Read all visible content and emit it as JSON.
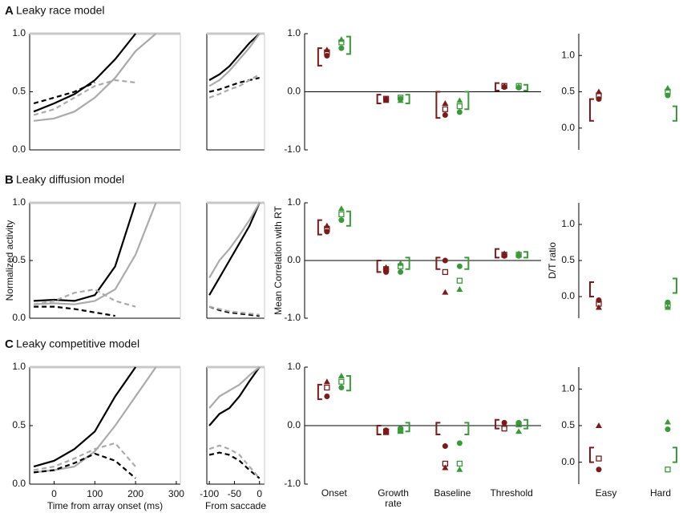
{
  "chart_data": [
    {
      "type": "line",
      "panel_label": "A",
      "title": "Leaky race model",
      "x": [
        -50,
        0,
        50,
        100,
        150,
        200,
        250,
        300
      ],
      "xlim": [
        -60,
        310
      ],
      "ylim": [
        0,
        1
      ],
      "yticks": [
        {
          "value": 0,
          "label": "0.0"
        },
        {
          "value": 0.5,
          "label": "0.5"
        },
        {
          "value": 1,
          "label": "1.0"
        }
      ],
      "series": [
        {
          "color": "#000000",
          "values": [
            0.33,
            0.4,
            0.48,
            0.6,
            0.78,
            1.0,
            null,
            null
          ]
        },
        {
          "color": "#aaaaaa",
          "values": [
            0.25,
            0.27,
            0.33,
            0.45,
            0.62,
            0.85,
            1.0,
            null
          ]
        },
        {
          "color": "#000000",
          "dash": true,
          "values": [
            0.4,
            0.45,
            0.5,
            0.58,
            null,
            null,
            null,
            null
          ]
        },
        {
          "color": "#aaaaaa",
          "dash": true,
          "values": [
            0.3,
            0.35,
            0.45,
            0.55,
            0.6,
            0.58,
            null,
            null
          ]
        }
      ]
    },
    {
      "type": "line",
      "x": [
        -100,
        -80,
        -60,
        -40,
        -20,
        0
      ],
      "xlim": [
        -105,
        10
      ],
      "ylim": [
        0,
        1
      ],
      "series": [
        {
          "color": "#000000",
          "values": [
            0.6,
            0.65,
            0.72,
            0.82,
            0.92,
            1.0
          ]
        },
        {
          "color": "#aaaaaa",
          "values": [
            0.55,
            0.6,
            0.68,
            0.78,
            0.88,
            1.0
          ]
        },
        {
          "color": "#000000",
          "dash": true,
          "values": [
            0.5,
            0.52,
            0.55,
            0.58,
            0.6,
            0.62
          ]
        },
        {
          "color": "#aaaaaa",
          "dash": true,
          "values": [
            0.45,
            0.48,
            0.52,
            0.55,
            0.6,
            0.65
          ]
        }
      ]
    },
    {
      "type": "scatter",
      "categories": [
        null,
        null,
        null,
        null
      ],
      "ylim": [
        -1,
        1
      ],
      "zero_line": true,
      "yticks": [
        {
          "value": -1,
          "label": "-1.0"
        },
        {
          "value": 0,
          "label": "0.0"
        },
        {
          "value": 1,
          "label": "1.0"
        }
      ],
      "series": [
        {
          "color": "#7a1a1a",
          "marker": "circle",
          "values": [
            0.62,
            -0.13,
            -0.4,
            0.08
          ]
        },
        {
          "color": "#7a1a1a",
          "marker": "square",
          "values": [
            0.68,
            -0.12,
            -0.3,
            0.1
          ]
        },
        {
          "color": "#7a1a1a",
          "marker": "triangle",
          "values": [
            0.72,
            -0.15,
            -0.2,
            0.1
          ]
        },
        {
          "color": "#3a9a3a",
          "marker": "circle",
          "values": [
            0.75,
            -0.12,
            -0.35,
            0.07
          ]
        },
        {
          "color": "#3a9a3a",
          "marker": "square",
          "values": [
            0.85,
            -0.1,
            -0.25,
            0.1
          ]
        },
        {
          "color": "#3a9a3a",
          "marker": "triangle",
          "values": [
            0.9,
            -0.15,
            -0.15,
            0.09
          ]
        }
      ],
      "intervals": [
        {
          "color": "#7a1a1a",
          "low": [
            0.45,
            -0.2,
            -0.45,
            0.02
          ],
          "high": [
            0.75,
            -0.05,
            0,
            0.15
          ]
        },
        {
          "color": "#3a9a3a",
          "low": [
            0.65,
            -0.2,
            -0.3,
            0.02
          ],
          "high": [
            0.95,
            -0.05,
            0,
            0.12
          ]
        }
      ]
    },
    {
      "type": "scatter",
      "categories": [
        null,
        null
      ],
      "ylim": [
        -0.3,
        1.3
      ],
      "yticks": [
        {
          "value": 0,
          "label": "0.0"
        },
        0.5,
        {
          "value": 1,
          "label": "1.0"
        }
      ],
      "series": [
        {
          "color": "#7a1a1a",
          "marker": "circle",
          "values": [
            0.4,
            null
          ]
        },
        {
          "color": "#7a1a1a",
          "marker": "square",
          "values": [
            0.45,
            null
          ]
        },
        {
          "color": "#7a1a1a",
          "marker": "triangle",
          "values": [
            0.5,
            null
          ]
        },
        {
          "color": "#3a9a3a",
          "marker": "circle",
          "values": [
            null,
            0.45
          ]
        },
        {
          "color": "#3a9a3a",
          "marker": "square",
          "values": [
            null,
            0.5
          ]
        },
        {
          "color": "#3a9a3a",
          "marker": "triangle",
          "values": [
            null,
            0.55
          ]
        }
      ],
      "intervals": [
        {
          "color": "#7a1a1a",
          "low": [
            0.1,
            null
          ],
          "high": [
            0.4,
            null
          ]
        },
        {
          "color": "#3a9a3a",
          "low": [
            null,
            0.1
          ],
          "high": [
            null,
            0.3
          ]
        }
      ]
    },
    {
      "type": "line",
      "panel_label": "B",
      "title": "Leaky diffusion model",
      "ylabel": "Normalized activity",
      "x": [
        -50,
        0,
        50,
        100,
        150,
        200,
        250,
        300
      ],
      "xlim": [
        -60,
        310
      ],
      "ylim": [
        0,
        1
      ],
      "yticks": [
        {
          "value": 0,
          "label": "0.0"
        },
        {
          "value": 0.5,
          "label": "0.5"
        },
        {
          "value": 1,
          "label": "1.0"
        }
      ],
      "series": [
        {
          "color": "#000000",
          "values": [
            0.15,
            0.16,
            0.15,
            0.2,
            0.45,
            1.0,
            null,
            null
          ]
        },
        {
          "color": "#aaaaaa",
          "values": [
            0.12,
            0.13,
            0.12,
            0.15,
            0.25,
            0.55,
            1.0,
            null
          ]
        },
        {
          "color": "#000000",
          "dash": true,
          "values": [
            0.1,
            0.1,
            0.08,
            0.05,
            0.02,
            null,
            null,
            null
          ]
        },
        {
          "color": "#aaaaaa",
          "dash": true,
          "values": [
            0.12,
            0.15,
            0.22,
            0.25,
            0.15,
            0.1,
            null,
            null
          ]
        }
      ]
    },
    {
      "type": "line",
      "x": [
        -100,
        -80,
        -60,
        -40,
        -20,
        0
      ],
      "xlim": [
        -105,
        10
      ],
      "ylim": [
        0,
        1
      ],
      "series": [
        {
          "color": "#000000",
          "values": [
            0.2,
            0.35,
            0.5,
            0.65,
            0.8,
            1.0
          ]
        },
        {
          "color": "#aaaaaa",
          "values": [
            0.35,
            0.5,
            0.6,
            0.72,
            0.85,
            1.0
          ]
        },
        {
          "color": "#000000",
          "dash": true,
          "values": [
            0.1,
            0.07,
            0.05,
            0.04,
            0.03,
            0.02
          ]
        },
        {
          "color": "#aaaaaa",
          "dash": true,
          "values": [
            0.1,
            0.08,
            0.06,
            0.05,
            0.04,
            0.03
          ]
        }
      ]
    },
    {
      "type": "scatter",
      "categories": [
        null,
        null,
        null,
        null
      ],
      "ylabel": "Mean Correlation with RT",
      "ylim": [
        -1,
        1
      ],
      "zero_line": true,
      "yticks": [
        {
          "value": -1,
          "label": "-1.0"
        },
        {
          "value": 0,
          "label": "0.0"
        },
        {
          "value": 1,
          "label": "1.0"
        }
      ],
      "series": [
        {
          "color": "#7a1a1a",
          "marker": "circle",
          "values": [
            0.5,
            -0.2,
            0,
            0.08
          ]
        },
        {
          "color": "#7a1a1a",
          "marker": "square",
          "values": [
            0.55,
            -0.15,
            -0.2,
            0.1
          ]
        },
        {
          "color": "#7a1a1a",
          "marker": "triangle",
          "values": [
            0.6,
            -0.12,
            -0.55,
            0.12
          ]
        },
        {
          "color": "#3a9a3a",
          "marker": "circle",
          "values": [
            0.7,
            -0.2,
            -0.1,
            0.08
          ]
        },
        {
          "color": "#3a9a3a",
          "marker": "square",
          "values": [
            0.8,
            -0.1,
            -0.35,
            0.1
          ]
        },
        {
          "color": "#3a9a3a",
          "marker": "triangle",
          "values": [
            0.9,
            -0.05,
            -0.5,
            0.12
          ]
        }
      ],
      "intervals": [
        {
          "color": "#7a1a1a",
          "low": [
            0.45,
            -0.2,
            -0.15,
            0.05
          ],
          "high": [
            0.7,
            0,
            0.05,
            0.2
          ]
        },
        {
          "color": "#3a9a3a",
          "low": [
            0.6,
            -0.15,
            -0.15,
            0.05
          ],
          "high": [
            0.85,
            0.05,
            0.05,
            0.15
          ]
        }
      ]
    },
    {
      "type": "scatter",
      "categories": [
        null,
        null
      ],
      "ylabel": "D/T ratio",
      "ylim": [
        -0.3,
        1.3
      ],
      "yticks": [
        {
          "value": 0,
          "label": "0.0"
        },
        0.5,
        {
          "value": 1,
          "label": "1.0"
        }
      ],
      "series": [
        {
          "color": "#7a1a1a",
          "marker": "circle",
          "values": [
            -0.05,
            null
          ]
        },
        {
          "color": "#7a1a1a",
          "marker": "square",
          "values": [
            -0.1,
            null
          ]
        },
        {
          "color": "#7a1a1a",
          "marker": "triangle",
          "values": [
            -0.15,
            null
          ]
        },
        {
          "color": "#3a9a3a",
          "marker": "circle",
          "values": [
            null,
            -0.08
          ]
        },
        {
          "color": "#3a9a3a",
          "marker": "square",
          "values": [
            null,
            -0.12
          ]
        },
        {
          "color": "#3a9a3a",
          "marker": "triangle",
          "values": [
            null,
            -0.15
          ]
        }
      ],
      "intervals": [
        {
          "color": "#7a1a1a",
          "low": [
            0,
            null
          ],
          "high": [
            0.2,
            null
          ]
        },
        {
          "color": "#3a9a3a",
          "low": [
            null,
            0.05
          ],
          "high": [
            null,
            0.25
          ]
        }
      ]
    },
    {
      "type": "line",
      "panel_label": "C",
      "title": "Leaky competitive model",
      "xlabel": "Time from array onset (ms)",
      "x": [
        -50,
        0,
        50,
        100,
        150,
        200,
        250,
        300
      ],
      "xlim": [
        -60,
        310
      ],
      "ylim": [
        0,
        1
      ],
      "xticks": [
        0,
        100,
        200,
        300
      ],
      "yticks": [
        {
          "value": 0,
          "label": "0.0"
        },
        {
          "value": 0.5,
          "label": "0.5"
        },
        {
          "value": 1,
          "label": "1.0"
        }
      ],
      "series": [
        {
          "color": "#000000",
          "values": [
            0.15,
            0.2,
            0.3,
            0.45,
            0.75,
            1.0,
            null,
            null
          ]
        },
        {
          "color": "#aaaaaa",
          "values": [
            0.1,
            0.12,
            0.15,
            0.28,
            0.5,
            0.75,
            1.0,
            null
          ]
        },
        {
          "color": "#000000",
          "dash": true,
          "values": [
            0.1,
            0.12,
            0.18,
            0.26,
            0.2,
            0.05,
            null,
            null
          ]
        },
        {
          "color": "#aaaaaa",
          "dash": true,
          "values": [
            0.12,
            0.15,
            0.22,
            0.3,
            0.35,
            0.15,
            null,
            null
          ]
        }
      ]
    },
    {
      "type": "line",
      "xlabel": "From saccade",
      "x": [
        -100,
        -80,
        -60,
        -40,
        -20,
        0
      ],
      "xlim": [
        -105,
        10
      ],
      "ylim": [
        0,
        1
      ],
      "xticks": [
        -100,
        -50,
        0
      ],
      "series": [
        {
          "color": "#000000",
          "values": [
            0.5,
            0.6,
            0.65,
            0.75,
            0.88,
            1.0
          ]
        },
        {
          "color": "#aaaaaa",
          "values": [
            0.65,
            0.75,
            0.8,
            0.85,
            0.93,
            1.0
          ]
        },
        {
          "color": "#000000",
          "dash": true,
          "values": [
            0.25,
            0.27,
            0.25,
            0.2,
            0.12,
            0.05
          ]
        },
        {
          "color": "#aaaaaa",
          "dash": true,
          "values": [
            0.3,
            0.33,
            0.3,
            0.25,
            0.15,
            0.05
          ]
        }
      ]
    },
    {
      "type": "scatter",
      "categories": [
        "Onset",
        "Growth rate",
        "Baseline",
        "Threshold"
      ],
      "ylim": [
        -1,
        1
      ],
      "zero_line": true,
      "yticks": [
        {
          "value": -1,
          "label": "-1.0"
        },
        {
          "value": 0,
          "label": "0.0"
        },
        {
          "value": 1,
          "label": "1.0"
        }
      ],
      "series": [
        {
          "color": "#7a1a1a",
          "marker": "circle",
          "values": [
            0.5,
            -0.08,
            -0.35,
            0.05
          ]
        },
        {
          "color": "#7a1a1a",
          "marker": "square",
          "values": [
            0.65,
            -0.1,
            -0.65,
            -0.05
          ]
        },
        {
          "color": "#7a1a1a",
          "marker": "triangle",
          "values": [
            0.75,
            -0.12,
            -0.72,
            0.02
          ]
        },
        {
          "color": "#3a9a3a",
          "marker": "circle",
          "values": [
            0.65,
            -0.05,
            -0.3,
            0.05
          ]
        },
        {
          "color": "#3a9a3a",
          "marker": "square",
          "values": [
            0.75,
            -0.08,
            -0.65,
            0.02
          ]
        },
        {
          "color": "#3a9a3a",
          "marker": "triangle",
          "values": [
            0.85,
            -0.1,
            -0.75,
            -0.1
          ]
        }
      ],
      "intervals": [
        {
          "color": "#7a1a1a",
          "low": [
            0.45,
            -0.15,
            -0.15,
            -0.05
          ],
          "high": [
            0.7,
            0,
            0.05,
            0.1
          ]
        },
        {
          "color": "#3a9a3a",
          "low": [
            0.6,
            -0.1,
            -0.15,
            -0.05
          ],
          "high": [
            0.85,
            0.05,
            0.05,
            0.1
          ]
        }
      ]
    },
    {
      "type": "scatter",
      "categories": [
        "Easy",
        "Hard"
      ],
      "ylim": [
        -0.3,
        1.3
      ],
      "yticks": [
        {
          "value": 0,
          "label": "0.0"
        },
        0.5,
        {
          "value": 1,
          "label": "1.0"
        }
      ],
      "series": [
        {
          "color": "#7a1a1a",
          "marker": "circle",
          "values": [
            -0.1,
            null
          ]
        },
        {
          "color": "#7a1a1a",
          "marker": "square",
          "values": [
            0.05,
            null
          ]
        },
        {
          "color": "#7a1a1a",
          "marker": "triangle",
          "values": [
            0.5,
            null
          ]
        },
        {
          "color": "#3a9a3a",
          "marker": "circle",
          "values": [
            null,
            0.45
          ]
        },
        {
          "color": "#3a9a3a",
          "marker": "square",
          "values": [
            null,
            -0.1
          ]
        },
        {
          "color": "#3a9a3a",
          "marker": "triangle",
          "values": [
            null,
            0.55
          ]
        }
      ],
      "intervals": [
        {
          "color": "#7a1a1a",
          "low": [
            0,
            null
          ],
          "high": [
            0.2,
            null
          ]
        },
        {
          "color": "#3a9a3a",
          "low": [
            null,
            0
          ],
          "high": [
            null,
            0.2
          ]
        }
      ]
    }
  ]
}
